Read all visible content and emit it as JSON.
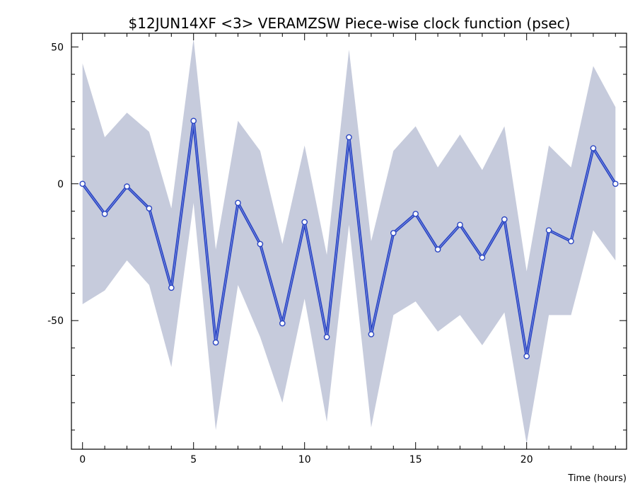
{
  "chart_data": {
    "type": "line",
    "title": "$12JUN14XF <3>  VERAMZSW  Piece-wise clock function (psec)",
    "xlabel": "Time (hours)",
    "ylabel": "",
    "xlim": [
      -0.5,
      24.5
    ],
    "ylim": [
      -97,
      55
    ],
    "x_ticks": [
      0,
      5,
      10,
      15,
      20
    ],
    "x_tick_labels": [
      "0",
      "5",
      "10",
      "15",
      "20"
    ],
    "y_ticks": [
      -50,
      0,
      50
    ],
    "y_tick_labels": [
      "-50",
      "0",
      "50"
    ],
    "x": [
      0,
      1,
      2,
      3,
      4,
      5,
      6,
      7,
      8,
      9,
      10,
      11,
      12,
      13,
      14,
      15,
      16,
      17,
      18,
      19,
      20,
      21,
      22,
      23,
      24
    ],
    "series": [
      {
        "values": [
          0,
          -11,
          -1,
          -9,
          -38,
          23,
          -58,
          -7,
          -22,
          -51,
          -14,
          -56,
          17,
          -55,
          -18,
          -11,
          -24,
          -15,
          -27,
          -13,
          -63,
          -17,
          -21,
          13,
          0
        ],
        "upper": [
          44,
          17,
          26,
          19,
          -9,
          53,
          -24,
          23,
          12,
          -22,
          14,
          -26,
          49,
          -21,
          12,
          21,
          6,
          18,
          5,
          21,
          -32,
          14,
          6,
          43,
          28
        ],
        "lower": [
          -44,
          -39,
          -28,
          -37,
          -67,
          -7,
          -90,
          -37,
          -56,
          -80,
          -42,
          -87,
          -15,
          -89,
          -48,
          -43,
          -54,
          -48,
          -59,
          -47,
          -95,
          -48,
          -48,
          -17,
          -28
        ]
      }
    ],
    "grid": false,
    "legend": "none",
    "colors": {
      "line": "#2a45c2",
      "marker_fill": "#ffffff",
      "band": "#c6cbdc",
      "axis": "#000000",
      "background": "#ffffff"
    }
  }
}
